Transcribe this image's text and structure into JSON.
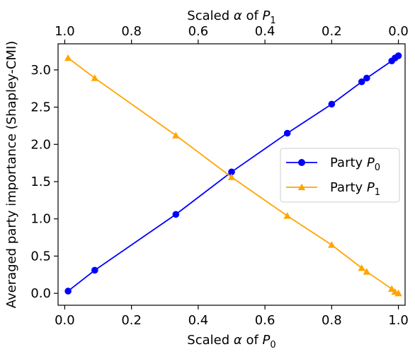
{
  "chart_data": {
    "type": "line",
    "xlabel": "Scaled α of P0",
    "x2label": "Scaled α of P1",
    "ylabel": "Averaged party importance (Shapley-CMI)",
    "xlim": [
      -0.02,
      1.02
    ],
    "ylim": [
      -0.16,
      3.35
    ],
    "x_ticks": [
      "0.0",
      "0.2",
      "0.4",
      "0.6",
      "0.8",
      "1.0"
    ],
    "x2_ticks": [
      "1.0",
      "0.8",
      "0.6",
      "0.4",
      "0.2",
      "0.0"
    ],
    "y_ticks": [
      "0.0",
      "0.5",
      "1.0",
      "1.5",
      "2.0",
      "2.5",
      "3.0"
    ],
    "grid": false,
    "legend_position": "right",
    "series": [
      {
        "name": "Party P0",
        "color": "#0000ff",
        "marker": "circle",
        "x": [
          0.01,
          0.09,
          0.333,
          0.5,
          0.667,
          0.8,
          0.89,
          0.905,
          0.98,
          0.99,
          1.0
        ],
        "y": [
          0.03,
          0.31,
          1.06,
          1.63,
          2.15,
          2.54,
          2.84,
          2.89,
          3.12,
          3.16,
          3.19
        ]
      },
      {
        "name": "Party P1",
        "color": "#ffa500",
        "marker": "triangle",
        "x": [
          0.01,
          0.09,
          0.333,
          0.5,
          0.667,
          0.8,
          0.89,
          0.905,
          0.98,
          0.99,
          1.0
        ],
        "y": [
          3.16,
          2.89,
          2.12,
          1.56,
          1.04,
          0.65,
          0.34,
          0.29,
          0.06,
          0.02,
          0.0
        ]
      }
    ]
  }
}
